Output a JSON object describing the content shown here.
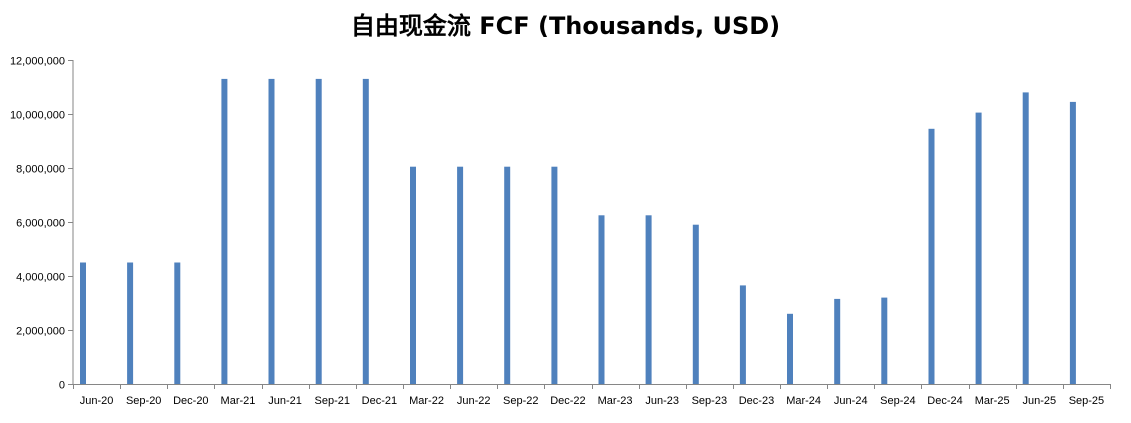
{
  "chart_data": {
    "type": "bar",
    "title": "自由现金流 FCF (Thousands, USD)",
    "xlabel": "",
    "ylabel": "",
    "ylim": [
      0,
      12000000
    ],
    "yticks": [
      "0",
      "2,000,000",
      "4,000,000",
      "6,000,000",
      "8,000,000",
      "10,000,000",
      "12,000,000"
    ],
    "ytick_values": [
      0,
      2000000,
      4000000,
      6000000,
      8000000,
      10000000,
      12000000
    ],
    "grid": false,
    "categories": [
      "Jun-20",
      "Sep-20",
      "Dec-20",
      "Mar-21",
      "Jun-21",
      "Sep-21",
      "Dec-21",
      "Mar-22",
      "Jun-22",
      "Sep-22",
      "Dec-22",
      "Mar-23",
      "Jun-23",
      "Sep-23",
      "Dec-23",
      "Mar-24",
      "Jun-24",
      "Sep-24",
      "Dec-24",
      "Mar-25",
      "Jun-25",
      "Sep-25"
    ],
    "values": [
      4500000,
      4500000,
      4500000,
      11300000,
      11300000,
      11300000,
      11300000,
      8050000,
      8050000,
      8050000,
      8050000,
      6250000,
      6250000,
      5900000,
      3650000,
      2600000,
      3150000,
      3200000,
      9450000,
      10050000,
      10800000,
      10450000
    ],
    "bar_color": "#4f81bd"
  }
}
